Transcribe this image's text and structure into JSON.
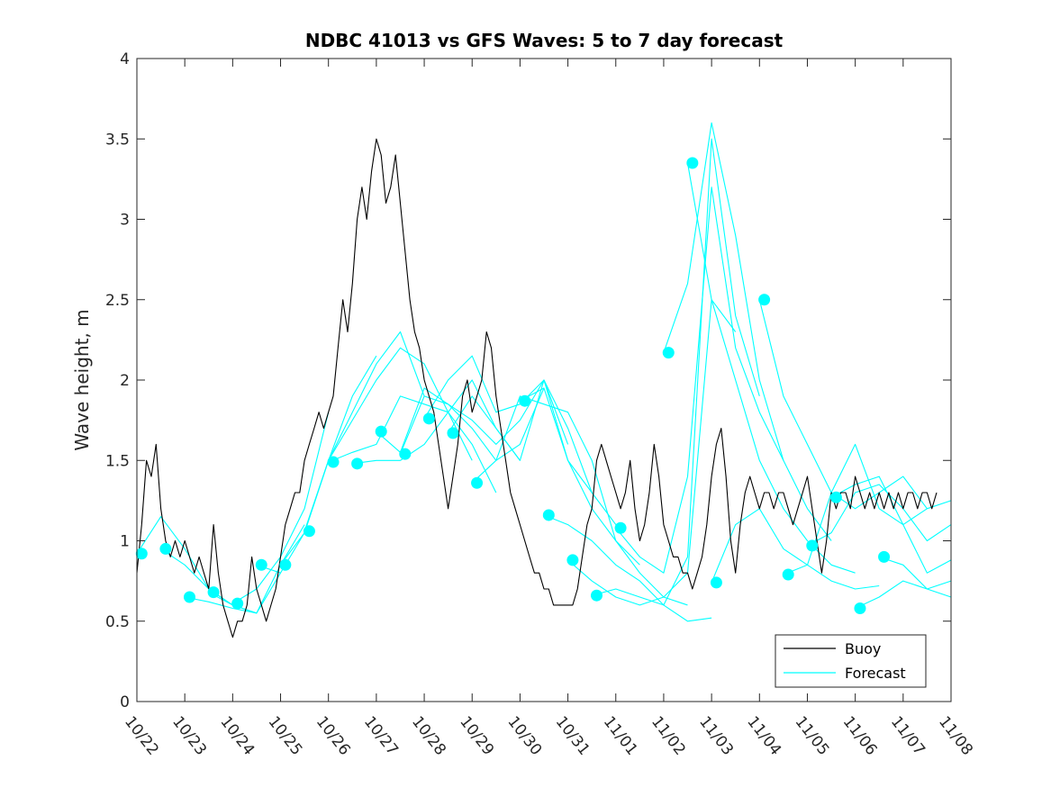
{
  "chart_data": {
    "type": "line",
    "title": "NDBC 41013 vs GFS Waves: 5 to 7 day forecast",
    "xlabel": "",
    "ylabel": "Wave height, m",
    "xlim": [
      0,
      17
    ],
    "ylim": [
      0,
      4
    ],
    "y_ticks": [
      0,
      0.5,
      1,
      1.5,
      2,
      2.5,
      3,
      3.5,
      4
    ],
    "y_tick_labels": [
      "0",
      "0.5",
      "1",
      "1.5",
      "2",
      "2.5",
      "3",
      "3.5",
      "4"
    ],
    "x_ticks": [
      0,
      1,
      2,
      3,
      4,
      5,
      6,
      7,
      8,
      9,
      10,
      11,
      12,
      13,
      14,
      15,
      16,
      17
    ],
    "x_tick_labels": [
      "10/22",
      "10/23",
      "10/24",
      "10/25",
      "10/26",
      "10/27",
      "10/28",
      "10/29",
      "10/30",
      "10/31",
      "11/01",
      "11/02",
      "11/03",
      "11/04",
      "11/05",
      "11/06",
      "11/07",
      "11/08"
    ],
    "legend": {
      "position": "bottom-right",
      "entries": [
        "Buoy",
        "Forecast"
      ]
    },
    "colors": {
      "buoy": "#000000",
      "forecast": "#00ffff",
      "marker": "#00ffff",
      "axis": "#262626"
    },
    "series": [
      {
        "name": "Buoy",
        "x": [
          0,
          0.1,
          0.2,
          0.3,
          0.4,
          0.5,
          0.6,
          0.7,
          0.8,
          0.9,
          1.0,
          1.1,
          1.2,
          1.3,
          1.4,
          1.5,
          1.6,
          1.7,
          1.8,
          1.9,
          2.0,
          2.1,
          2.2,
          2.3,
          2.4,
          2.5,
          2.6,
          2.7,
          2.8,
          2.9,
          3.0,
          3.1,
          3.2,
          3.3,
          3.4,
          3.5,
          3.6,
          3.7,
          3.8,
          3.9,
          4.0,
          4.1,
          4.2,
          4.3,
          4.4,
          4.5,
          4.6,
          4.7,
          4.8,
          4.9,
          5.0,
          5.1,
          5.2,
          5.3,
          5.4,
          5.5,
          5.6,
          5.7,
          5.8,
          5.9,
          6.0,
          6.1,
          6.2,
          6.3,
          6.4,
          6.5,
          6.6,
          6.7,
          6.8,
          6.9,
          7.0,
          7.1,
          7.2,
          7.3,
          7.4,
          7.5,
          7.6,
          7.7,
          7.8,
          7.9,
          8.0,
          8.1,
          8.2,
          8.3,
          8.4,
          8.5,
          8.6,
          8.7,
          8.8,
          8.9,
          9.0,
          9.1,
          9.2,
          9.3,
          9.4,
          9.5,
          9.6,
          9.7,
          9.8,
          9.9,
          10.0,
          10.1,
          10.2,
          10.3,
          10.4,
          10.5,
          10.6,
          10.7,
          10.8,
          10.9,
          11.0,
          11.1,
          11.2,
          11.3,
          11.4,
          11.5,
          11.6,
          11.7,
          11.8,
          11.9,
          12.0,
          12.1,
          12.2,
          12.3,
          12.4,
          12.5,
          12.6,
          12.7,
          12.8,
          12.9,
          13.0,
          13.1,
          13.2,
          13.3,
          13.4,
          13.5,
          13.6,
          13.7,
          13.8,
          13.9,
          14.0,
          14.1,
          14.2,
          14.3,
          14.4,
          14.5,
          14.6,
          14.7,
          14.8,
          14.9,
          15.0,
          15.1,
          15.2,
          15.3,
          15.4,
          15.5,
          15.6,
          15.7,
          15.8,
          15.9,
          16.0,
          16.1,
          16.2,
          16.3,
          16.4,
          16.5,
          16.6,
          16.7
        ],
        "y": [
          0.8,
          1.1,
          1.5,
          1.4,
          1.6,
          1.2,
          1.0,
          0.9,
          1.0,
          0.9,
          1.0,
          0.9,
          0.8,
          0.9,
          0.8,
          0.7,
          1.1,
          0.8,
          0.6,
          0.5,
          0.4,
          0.5,
          0.5,
          0.6,
          0.9,
          0.7,
          0.6,
          0.5,
          0.6,
          0.7,
          0.9,
          1.1,
          1.2,
          1.3,
          1.3,
          1.5,
          1.6,
          1.7,
          1.8,
          1.7,
          1.8,
          1.9,
          2.2,
          2.5,
          2.3,
          2.6,
          3.0,
          3.2,
          3.0,
          3.3,
          3.5,
          3.4,
          3.1,
          3.2,
          3.4,
          3.1,
          2.8,
          2.5,
          2.3,
          2.2,
          2.0,
          1.9,
          1.8,
          1.6,
          1.4,
          1.2,
          1.4,
          1.6,
          1.9,
          2.0,
          1.8,
          1.9,
          2.0,
          2.3,
          2.2,
          1.9,
          1.7,
          1.5,
          1.3,
          1.2,
          1.1,
          1.0,
          0.9,
          0.8,
          0.8,
          0.7,
          0.7,
          0.6,
          0.6,
          0.6,
          0.6,
          0.6,
          0.7,
          0.9,
          1.1,
          1.2,
          1.5,
          1.6,
          1.5,
          1.4,
          1.3,
          1.2,
          1.3,
          1.5,
          1.2,
          1.0,
          1.1,
          1.3,
          1.6,
          1.4,
          1.1,
          1.0,
          0.9,
          0.9,
          0.8,
          0.8,
          0.7,
          0.8,
          0.9,
          1.1,
          1.4,
          1.6,
          1.7,
          1.4,
          1.0,
          0.8,
          1.1,
          1.3,
          1.4,
          1.3,
          1.2,
          1.3,
          1.3,
          1.2,
          1.3,
          1.3,
          1.2,
          1.1,
          1.2,
          1.3,
          1.4,
          1.2,
          1.0,
          0.8,
          1.0,
          1.3,
          1.2,
          1.3,
          1.3,
          1.2,
          1.4,
          1.3,
          1.2,
          1.3,
          1.2,
          1.3,
          1.2,
          1.3,
          1.2,
          1.3,
          1.2,
          1.3,
          1.3,
          1.2,
          1.3,
          1.3,
          1.2,
          1.3
        ]
      },
      {
        "name": "Forecast",
        "x": [
          0.0,
          0.5,
          1.0,
          1.5,
          2.0
        ],
        "y": [
          0.92,
          1.15,
          0.95,
          0.7,
          0.6
        ]
      },
      {
        "name": "Forecast",
        "x": [
          0.5,
          1.0,
          1.5,
          2.0,
          2.5
        ],
        "y": [
          0.95,
          0.85,
          0.7,
          0.6,
          0.55
        ]
      },
      {
        "name": "Forecast",
        "x": [
          1.0,
          1.5,
          2.0,
          2.5,
          3.0
        ],
        "y": [
          0.65,
          0.62,
          0.58,
          0.55,
          0.8
        ]
      },
      {
        "name": "Forecast",
        "x": [
          1.5,
          2.0,
          2.5,
          3.0,
          3.5
        ],
        "y": [
          0.68,
          0.6,
          0.55,
          0.85,
          1.1
        ]
      },
      {
        "name": "Forecast",
        "x": [
          2.0,
          2.5,
          3.0,
          3.5,
          4.0
        ],
        "y": [
          0.61,
          0.7,
          0.9,
          1.2,
          1.8
        ]
      },
      {
        "name": "Forecast",
        "x": [
          2.5,
          3.0,
          3.5,
          4.0,
          4.5,
          5.0
        ],
        "y": [
          0.85,
          0.8,
          1.05,
          1.5,
          1.9,
          2.15
        ]
      },
      {
        "name": "Forecast",
        "x": [
          3.0,
          3.5,
          4.0,
          4.5,
          5.0,
          5.5,
          6.0
        ],
        "y": [
          0.85,
          1.05,
          1.5,
          1.8,
          2.1,
          2.3,
          1.9
        ]
      },
      {
        "name": "Forecast",
        "x": [
          3.5,
          4.0,
          4.5,
          5.0,
          5.5,
          6.0,
          6.5,
          7.0
        ],
        "y": [
          1.06,
          1.5,
          1.75,
          2.0,
          2.2,
          2.1,
          1.8,
          1.5
        ]
      },
      {
        "name": "Forecast",
        "x": [
          4.0,
          4.5,
          5.0,
          5.5,
          6.0,
          6.5,
          7.0,
          7.5
        ],
        "y": [
          1.49,
          1.55,
          1.6,
          1.9,
          1.85,
          1.8,
          1.6,
          1.3
        ]
      },
      {
        "name": "Forecast",
        "x": [
          4.5,
          5.0,
          5.5,
          6.0,
          6.5,
          7.0,
          7.5,
          8.0
        ],
        "y": [
          1.48,
          1.5,
          1.5,
          1.6,
          1.8,
          2.0,
          1.7,
          1.5
        ]
      },
      {
        "name": "Forecast",
        "x": [
          5.0,
          5.5,
          6.0,
          6.5,
          7.0,
          7.5,
          8.0,
          8.5
        ],
        "y": [
          1.68,
          1.55,
          1.95,
          1.85,
          1.7,
          1.5,
          1.6,
          1.95
        ]
      },
      {
        "name": "Forecast",
        "x": [
          5.5,
          6.0,
          6.5,
          7.0,
          7.5,
          8.0,
          8.5,
          9.0
        ],
        "y": [
          1.54,
          1.9,
          1.85,
          1.75,
          1.6,
          1.75,
          2.0,
          1.6
        ]
      },
      {
        "name": "Forecast",
        "x": [
          6.0,
          6.5,
          7.0,
          7.5,
          8.0,
          8.5,
          9.0,
          9.5
        ],
        "y": [
          1.76,
          2.0,
          2.15,
          1.8,
          1.85,
          2.0,
          1.5,
          1.3
        ]
      },
      {
        "name": "Forecast",
        "x": [
          6.5,
          7.0,
          7.5,
          8.0,
          8.5,
          9.0,
          9.5,
          10.0
        ],
        "y": [
          1.67,
          1.9,
          1.7,
          1.5,
          2.0,
          1.7,
          1.3,
          1.1
        ]
      },
      {
        "name": "Forecast",
        "x": [
          7.0,
          7.5,
          8.0,
          8.5,
          9.0,
          9.5,
          10.0,
          10.5
        ],
        "y": [
          1.36,
          1.5,
          1.9,
          1.85,
          1.8,
          1.5,
          1.0,
          0.85
        ]
      },
      {
        "name": "Forecast",
        "x": [
          8.0,
          8.5,
          9.0,
          9.5,
          10.0,
          10.5,
          11.0,
          11.5
        ],
        "y": [
          1.87,
          1.95,
          1.5,
          1.2,
          1.0,
          0.8,
          0.65,
          0.6
        ]
      },
      {
        "name": "Forecast",
        "x": [
          8.5,
          9.0,
          9.5,
          10.0,
          10.5,
          11.0,
          11.5,
          12.0
        ],
        "y": [
          1.16,
          1.1,
          1.0,
          0.85,
          0.75,
          0.6,
          0.5,
          0.52
        ]
      },
      {
        "name": "Forecast",
        "x": [
          9.0,
          9.5,
          10.0,
          10.5,
          11.0,
          11.5,
          12.0,
          12.5
        ],
        "y": [
          0.88,
          0.75,
          0.65,
          0.6,
          0.65,
          0.8,
          2.5,
          2.3
        ]
      },
      {
        "name": "Forecast",
        "x": [
          9.5,
          10.0,
          10.5,
          11.0,
          11.5,
          12.0,
          12.5,
          13.0
        ],
        "y": [
          0.66,
          0.7,
          0.65,
          0.6,
          0.9,
          3.5,
          2.4,
          1.9
        ]
      },
      {
        "name": "Forecast",
        "x": [
          10.0,
          10.5,
          11.0,
          11.5,
          12.0,
          12.5,
          13.0,
          13.5
        ],
        "y": [
          1.08,
          0.9,
          0.8,
          1.4,
          3.2,
          2.2,
          1.8,
          1.5
        ]
      },
      {
        "name": "Forecast",
        "x": [
          11.0,
          11.5,
          12.0,
          12.5,
          13.0,
          13.5,
          14.0,
          14.5
        ],
        "y": [
          2.17,
          2.6,
          3.6,
          2.9,
          2.0,
          1.5,
          1.2,
          1.0
        ]
      },
      {
        "name": "Forecast",
        "x": [
          11.5,
          12.0,
          12.5,
          13.0,
          13.5,
          14.0,
          14.5,
          15.0
        ],
        "y": [
          3.35,
          2.5,
          2.0,
          1.5,
          1.2,
          1.0,
          0.85,
          0.8
        ]
      },
      {
        "name": "Forecast",
        "x": [
          12.0,
          12.5,
          13.0,
          13.5,
          14.0,
          14.5,
          15.0,
          15.5
        ],
        "y": [
          0.74,
          1.1,
          1.2,
          0.95,
          0.85,
          0.75,
          0.7,
          0.72
        ]
      },
      {
        "name": "Forecast",
        "x": [
          13.0,
          13.5,
          14.0,
          14.5,
          15.0,
          15.5,
          16.0,
          16.5
        ],
        "y": [
          2.5,
          1.9,
          1.6,
          1.3,
          1.2,
          1.3,
          1.4,
          1.2
        ]
      },
      {
        "name": "Forecast",
        "x": [
          13.5,
          14.0,
          14.5,
          15.0,
          15.5,
          16.0,
          16.5,
          17.0
        ],
        "y": [
          0.79,
          0.85,
          1.3,
          1.6,
          1.2,
          1.1,
          1.2,
          1.25
        ]
      },
      {
        "name": "Forecast",
        "x": [
          14.0,
          14.5,
          15.0,
          15.5,
          16.0,
          16.5,
          17.0
        ],
        "y": [
          0.97,
          1.05,
          1.3,
          1.35,
          1.2,
          1.0,
          1.1
        ]
      },
      {
        "name": "Forecast",
        "x": [
          14.5,
          15.0,
          15.5,
          16.0,
          16.5,
          17.0
        ],
        "y": [
          1.27,
          1.35,
          1.4,
          1.1,
          0.8,
          0.88
        ]
      },
      {
        "name": "Forecast",
        "x": [
          15.0,
          15.5,
          16.0,
          16.5,
          17.0
        ],
        "y": [
          0.58,
          0.65,
          0.75,
          0.7,
          0.75
        ]
      },
      {
        "name": "Forecast",
        "x": [
          15.5,
          16.0,
          16.5,
          17.0
        ],
        "y": [
          0.9,
          0.85,
          0.7,
          0.65
        ]
      }
    ],
    "forecast_start_markers": {
      "x": [
        0.1,
        0.6,
        1.1,
        1.6,
        2.1,
        2.6,
        3.1,
        3.6,
        4.1,
        4.6,
        5.1,
        5.6,
        6.1,
        6.6,
        7.1,
        8.1,
        8.6,
        9.1,
        9.6,
        10.1,
        11.1,
        11.6,
        12.1,
        13.1,
        13.6,
        14.1,
        14.6,
        15.1,
        15.6
      ],
      "y": [
        0.92,
        0.95,
        0.65,
        0.68,
        0.61,
        0.85,
        0.85,
        1.06,
        1.49,
        1.48,
        1.68,
        1.54,
        1.76,
        1.67,
        1.36,
        1.87,
        1.16,
        0.88,
        0.66,
        1.08,
        2.17,
        3.35,
        0.74,
        2.5,
        0.79,
        0.97,
        1.27,
        0.58,
        0.9
      ]
    }
  }
}
